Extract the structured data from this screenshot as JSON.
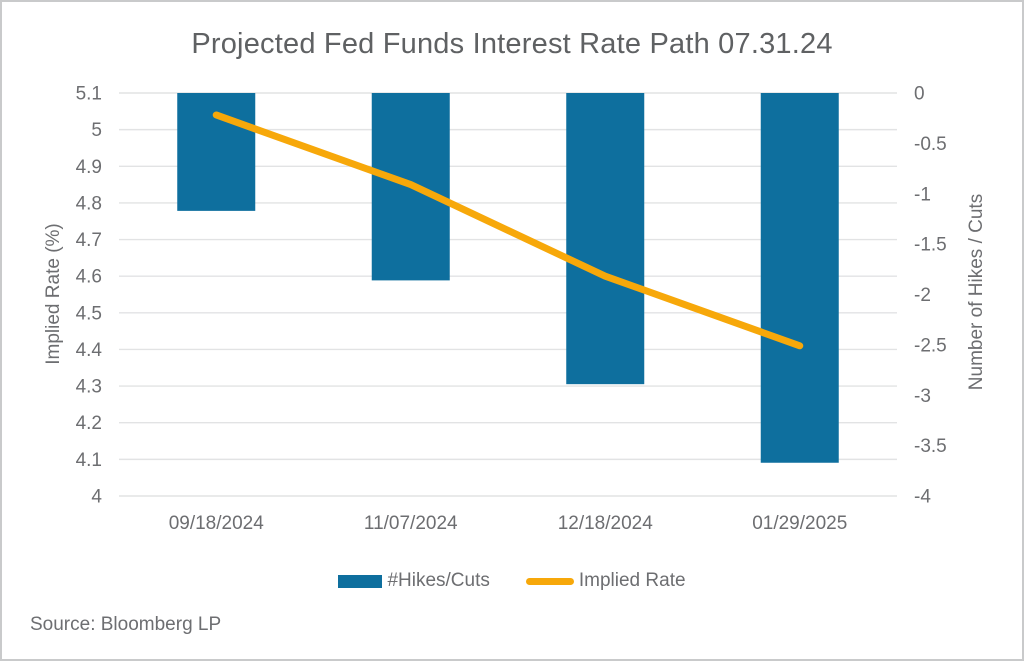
{
  "title": "Projected Fed Funds Interest Rate Path 07.31.24",
  "source": "Source: Bloomberg LP",
  "legend": [
    {
      "label": "#Hikes/Cuts",
      "swatch": "bar-swatch"
    },
    {
      "label": "Implied Rate",
      "swatch": "line-swatch"
    }
  ],
  "colors": {
    "bar": "#0E6F9E",
    "line": "#F7A80A",
    "grid": "#E2E3E4",
    "tick_text": "#6D6E71",
    "title_text": "#5F6163",
    "border": "#C9CACB"
  },
  "chart_data": {
    "type": "bar",
    "subtype": "dual-axis combo (bars + line)",
    "title": "Projected Fed Funds Interest Rate Path 07.31.24",
    "categories": [
      "09/18/2024",
      "11/07/2024",
      "12/18/2024",
      "01/29/2025"
    ],
    "series": [
      {
        "name": "#Hikes/Cuts",
        "type": "bar",
        "axis": "right",
        "values": [
          -1.17,
          -1.86,
          -2.89,
          -3.67
        ]
      },
      {
        "name": "Implied Rate",
        "type": "line",
        "axis": "left",
        "values": [
          5.04,
          4.85,
          4.6,
          4.41
        ]
      }
    ],
    "left_axis": {
      "label": "Implied Rate (%)",
      "min": 4,
      "max": 5.1,
      "tick_step": 0.1,
      "ticks": [
        "5.1",
        "5",
        "4.9",
        "4.8",
        "4.7",
        "4.6",
        "4.5",
        "4.4",
        "4.3",
        "4.2",
        "4.1",
        "4"
      ]
    },
    "right_axis": {
      "label": "Number of Hikes / Cuts",
      "min": -4,
      "max": 0,
      "tick_step": 0.5,
      "ticks": [
        "0",
        "-0.5",
        "-1",
        "-1.5",
        "-2",
        "-2.5",
        "-3",
        "-3.5",
        "-4"
      ]
    },
    "grid": "horizontal gridlines at every 0.1 of left axis",
    "legend_position": "bottom center",
    "bars_anchor": "bars hang downward from 0 on right axis"
  }
}
